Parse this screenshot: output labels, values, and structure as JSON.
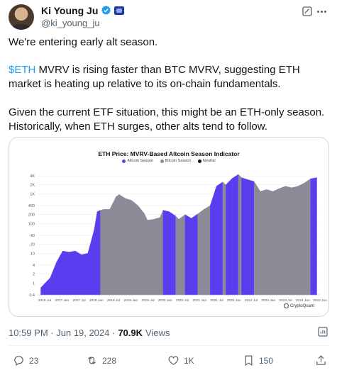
{
  "tweet": {
    "display_name": "Ki Young Ju",
    "handle": "@ki_young_ju",
    "line1": "We're entering early alt season.",
    "cashtag": "$ETH",
    "line2_rest": " MVRV is rising faster than BTC MVRV, suggesting ETH market is heating up relative to its on-chain fundamentals.",
    "line3": "Given the current ETF situation, this might be an ETH-only season. Historically, when ETH surges, other alts tend to follow.",
    "timestamp": "10:59 PM · Jun 19, 2024 · ",
    "views_count": "70.9K",
    "views_label": "Views"
  },
  "actions": {
    "replies": "23",
    "reposts": "228",
    "likes": "1K",
    "bookmarks": "150"
  },
  "colors": {
    "altcoin_season": "#5b3df0",
    "bitcoin_season": "#8c8a96",
    "neutral": "#111111",
    "link": "#1d9bf0"
  },
  "chart_data": {
    "type": "area",
    "title": "ETH Price: MVRV-Based Altcoin Season Indicator",
    "legend": [
      "Altcoin Season",
      "Bitcoin Season",
      "Neutral"
    ],
    "brand": "CryptoQuant",
    "y_scale": "log",
    "y_ticks": [
      "4K",
      "2K",
      "1K",
      "400",
      "200",
      "100",
      "40",
      "20",
      "10",
      "4",
      "2",
      "1",
      "0.4"
    ],
    "x_ticks": [
      "2016 Jul",
      "2017 Jan",
      "2017 Jul",
      "2018 Jan",
      "2018 Jul",
      "2019 Jan",
      "2019 Jul",
      "2020 Jan",
      "2020 Jul",
      "2021 Jan",
      "2021 Jul",
      "2022 Jan",
      "2022 Jul",
      "2023 Jan",
      "2023 Jul",
      "2024 Jan",
      "2024 Jun"
    ],
    "x": [
      2015.6,
      2015.9,
      2016.1,
      2016.3,
      2016.5,
      2016.7,
      2016.9,
      2017.1,
      2017.3,
      2017.4,
      2017.5,
      2017.6,
      2017.8,
      2018.0,
      2018.1,
      2018.3,
      2018.5,
      2018.7,
      2018.9,
      2019.0,
      2019.2,
      2019.4,
      2019.5,
      2019.7,
      2019.9,
      2020.0,
      2020.2,
      2020.4,
      2020.6,
      2020.8,
      2021.0,
      2021.2,
      2021.4,
      2021.5,
      2021.7,
      2021.9,
      2022.0,
      2022.2,
      2022.4,
      2022.6,
      2022.8,
      2023.0,
      2023.2,
      2023.4,
      2023.6,
      2023.8,
      2024.0,
      2024.2,
      2024.4
    ],
    "y": [
      0.7,
      1.5,
      5,
      12,
      11,
      12,
      9,
      10,
      60,
      250,
      280,
      300,
      300,
      800,
      950,
      700,
      600,
      400,
      220,
      130,
      140,
      160,
      280,
      250,
      180,
      140,
      200,
      150,
      210,
      300,
      400,
      1800,
      2500,
      2000,
      3300,
      4500,
      3500,
      3000,
      2600,
      1200,
      1400,
      1200,
      1500,
      1800,
      1600,
      1800,
      2300,
      3200,
      3500
    ],
    "season": [
      "a",
      "a",
      "a",
      "a",
      "a",
      "a",
      "a",
      "a",
      "a",
      "a",
      "b",
      "b",
      "b",
      "b",
      "b",
      "b",
      "b",
      "b",
      "b",
      "b",
      "b",
      "b",
      "a",
      "a",
      "b",
      "b",
      "a",
      "a",
      "b",
      "b",
      "a",
      "a",
      "b",
      "a",
      "a",
      "b",
      "a",
      "a",
      "b",
      "b",
      "b",
      "b",
      "b",
      "b",
      "b",
      "b",
      "b",
      "a",
      "a"
    ],
    "highlight_end_date": "2024 Jun"
  }
}
